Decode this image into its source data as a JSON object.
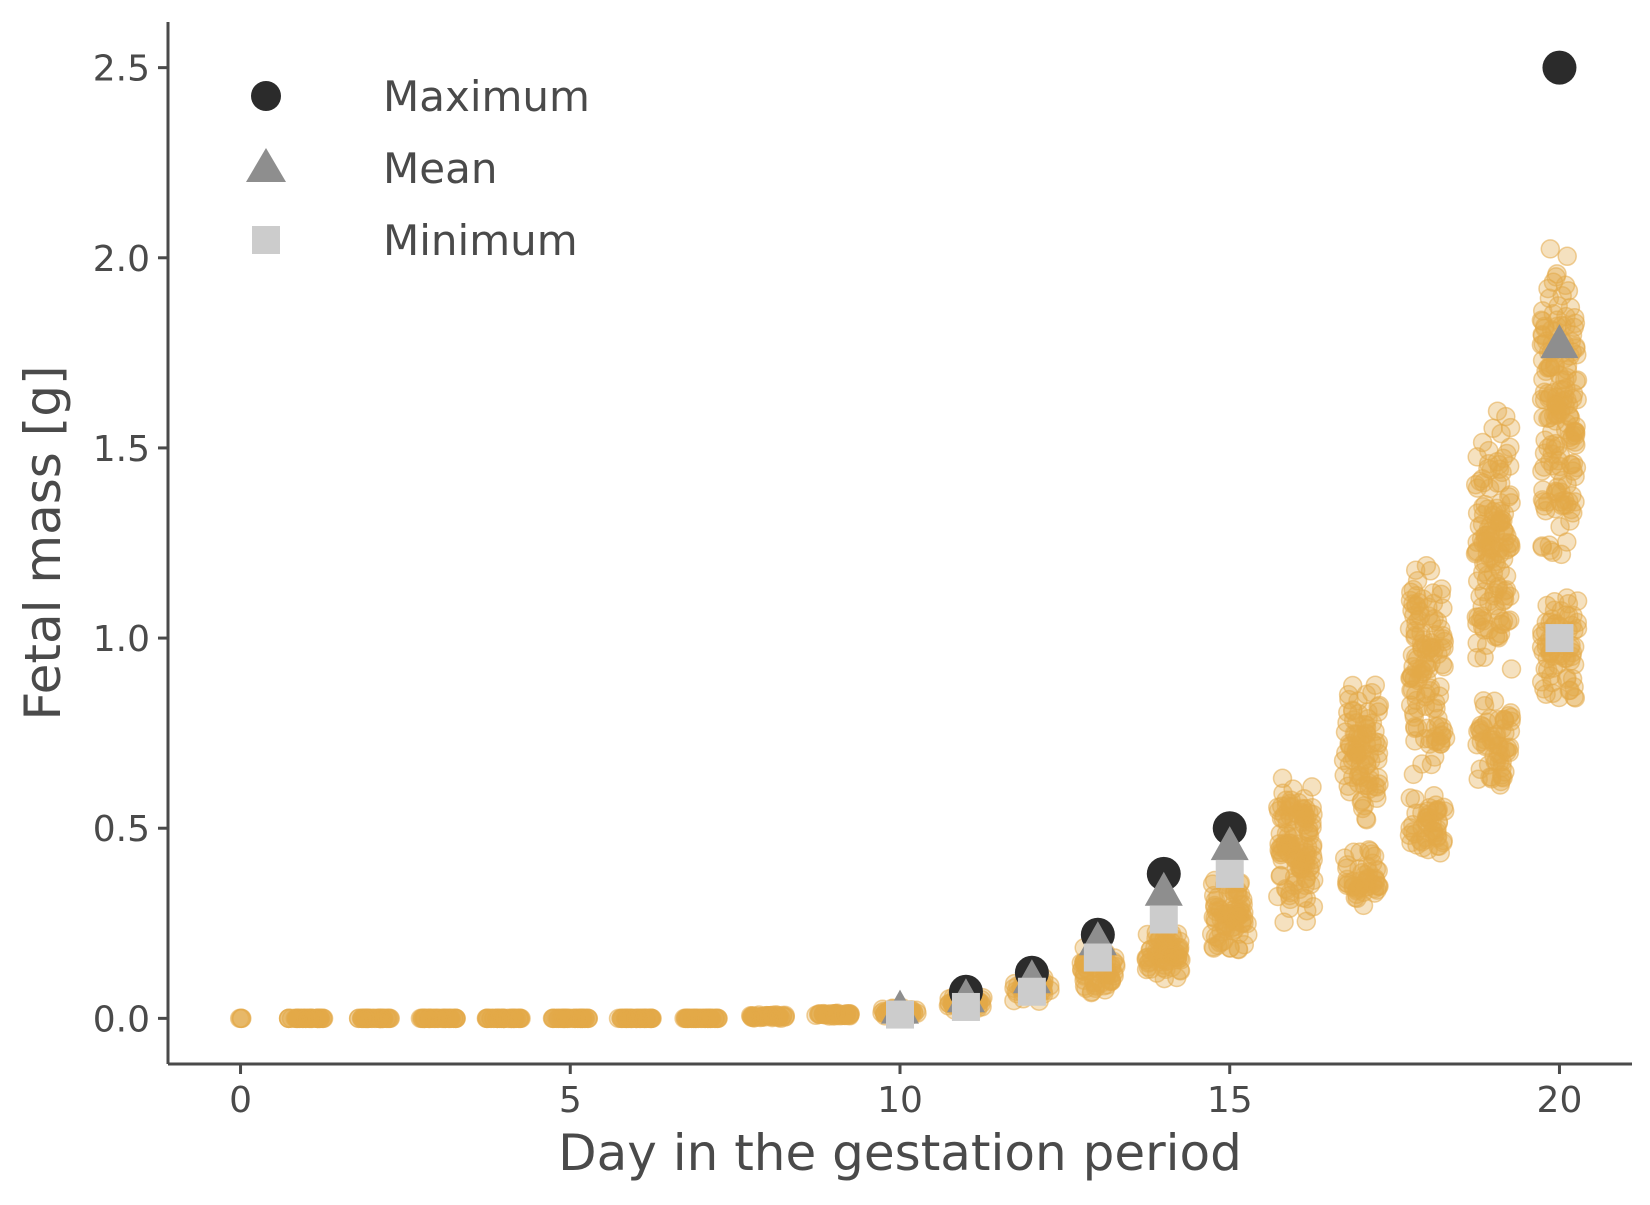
{
  "chart_data": {
    "type": "scatter",
    "title": "",
    "xlabel": "Day in the gestation period",
    "ylabel": "Fetal mass [g]",
    "xlim": [
      -1.1,
      21.1
    ],
    "ylim": [
      -0.12,
      2.62
    ],
    "x_ticks": [
      0,
      5,
      10,
      15,
      20
    ],
    "x_tick_labels": [
      "0",
      "5",
      "10",
      "15",
      "20"
    ],
    "y_ticks": [
      0.0,
      0.5,
      1.0,
      1.5,
      2.0,
      2.5
    ],
    "y_tick_labels": [
      "0.0",
      "0.5",
      "1.0",
      "1.5",
      "2.0",
      "2.5"
    ],
    "grid": false,
    "legend_position": "top-left",
    "colors": {
      "observations": "#e3a948",
      "maximum": "#2b2b2b",
      "mean": "#8e8e8e",
      "minimum": "#cccccc",
      "axis": "#4a4a4a"
    },
    "observation_groups": [
      {
        "day": 0,
        "clusters": [
          [
            0.0,
            0.0,
            4
          ]
        ]
      },
      {
        "day": 1,
        "clusters": [
          [
            0.0,
            0.0,
            40
          ]
        ]
      },
      {
        "day": 2,
        "clusters": [
          [
            0.0,
            0.0,
            40
          ]
        ]
      },
      {
        "day": 3,
        "clusters": [
          [
            0.0,
            0.0,
            40
          ]
        ]
      },
      {
        "day": 4,
        "clusters": [
          [
            0.0,
            0.0,
            40
          ]
        ]
      },
      {
        "day": 5,
        "clusters": [
          [
            0.0,
            0.0,
            40
          ]
        ]
      },
      {
        "day": 6,
        "clusters": [
          [
            0.0,
            0.0,
            40
          ]
        ]
      },
      {
        "day": 7,
        "clusters": [
          [
            0.0,
            0.0,
            40
          ]
        ]
      },
      {
        "day": 8,
        "clusters": [
          [
            0.0,
            0.01,
            40
          ]
        ]
      },
      {
        "day": 9,
        "clusters": [
          [
            0.005,
            0.015,
            40
          ]
        ]
      },
      {
        "day": 10,
        "clusters": [
          [
            0.005,
            0.03,
            40
          ]
        ]
      },
      {
        "day": 11,
        "clusters": [
          [
            0.02,
            0.06,
            45
          ]
        ]
      },
      {
        "day": 12,
        "clusters": [
          [
            0.04,
            0.11,
            50
          ]
        ]
      },
      {
        "day": 13,
        "clusters": [
          [
            0.06,
            0.2,
            60
          ]
        ]
      },
      {
        "day": 14,
        "clusters": [
          [
            0.1,
            0.24,
            70
          ]
        ]
      },
      {
        "day": 15,
        "clusters": [
          [
            0.16,
            0.38,
            80
          ]
        ]
      },
      {
        "day": 16,
        "clusters": [
          [
            0.24,
            0.64,
            120
          ]
        ]
      },
      {
        "day": 17,
        "clusters": [
          [
            0.28,
            0.45,
            50
          ],
          [
            0.5,
            0.9,
            90
          ]
        ]
      },
      {
        "day": 18,
        "clusters": [
          [
            0.42,
            0.6,
            50
          ],
          [
            0.6,
            1.23,
            120
          ]
        ]
      },
      {
        "day": 19,
        "clusters": [
          [
            0.6,
            0.85,
            60
          ],
          [
            0.88,
            1.63,
            140
          ]
        ]
      },
      {
        "day": 20,
        "clusters": [
          [
            0.81,
            1.14,
            70
          ],
          [
            1.14,
            2.09,
            170
          ]
        ]
      }
    ],
    "series": [
      {
        "name": "Maximum",
        "marker": "circle",
        "x": [
          11,
          12,
          13,
          14,
          15,
          20
        ],
        "y": [
          0.07,
          0.12,
          0.22,
          0.38,
          0.5,
          2.5
        ]
      },
      {
        "name": "Mean",
        "marker": "triangle",
        "x": [
          10,
          11,
          12,
          13,
          14,
          15,
          20
        ],
        "y": [
          0.02,
          0.05,
          0.1,
          0.2,
          0.33,
          0.45,
          1.77
        ]
      },
      {
        "name": "Minimum",
        "marker": "square",
        "x": [
          10,
          11,
          12,
          13,
          14,
          15,
          20
        ],
        "y": [
          0.01,
          0.03,
          0.07,
          0.16,
          0.26,
          0.38,
          1.0
        ]
      }
    ]
  },
  "legend": {
    "items": [
      {
        "label": "Maximum"
      },
      {
        "label": "Mean"
      },
      {
        "label": "Minimum"
      }
    ]
  }
}
